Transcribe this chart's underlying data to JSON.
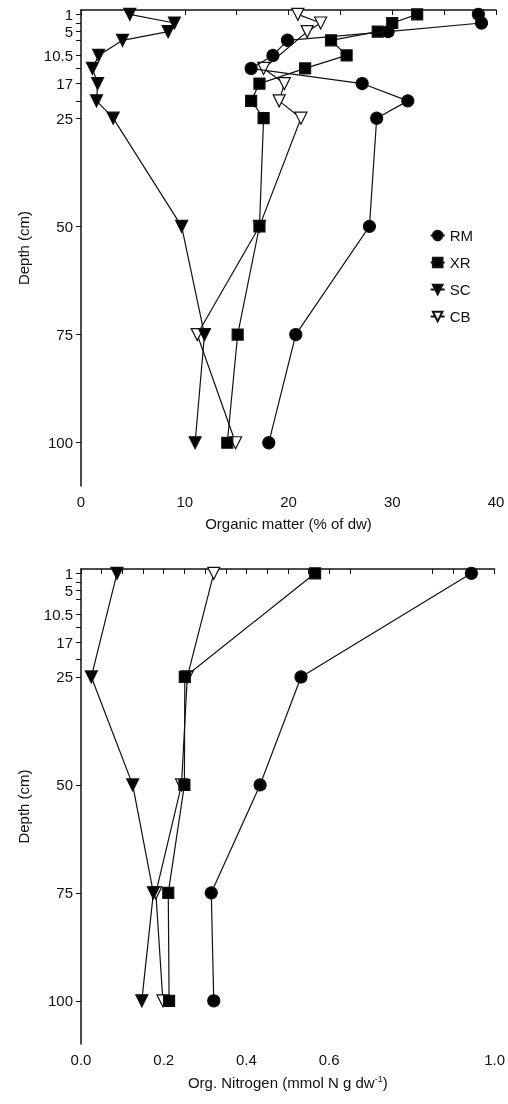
{
  "chart_data": [
    {
      "type": "line",
      "xlabel": "Organic matter (% of dw)",
      "ylabel": "Depth (cm)",
      "xlim": [
        0,
        40
      ],
      "xticks": [
        0,
        {
          "value": 5,
          "label": null
        },
        10,
        {
          "value": 15,
          "label": null
        },
        20,
        {
          "value": 25,
          "label": null
        },
        30,
        {
          "value": 35,
          "label": null
        },
        40
      ],
      "ylim": [
        110,
        0
      ],
      "yticks": [
        1,
        {
          "value": 3,
          "label": null
        },
        5,
        {
          "value": 7,
          "label": null
        },
        10.5,
        {
          "value": 13.5,
          "label": null
        },
        17,
        {
          "value": 21,
          "label": null
        },
        25,
        50,
        75,
        100
      ],
      "grid": false,
      "legend": "right",
      "series": [
        {
          "name": "RM",
          "color": "#000000",
          "marker": "circle",
          "x": [
            38.3,
            38.6,
            29.6,
            19.9,
            18.5,
            16.4,
            27.1,
            31.5,
            28.5,
            27.8,
            20.7,
            18.1
          ],
          "values": [
            1,
            3,
            5,
            7,
            10.5,
            13.5,
            17,
            21,
            25,
            50,
            75,
            100
          ]
        },
        {
          "name": "XR",
          "color": "#000000",
          "marker": "square",
          "x": [
            32.4,
            30.0,
            28.6,
            24.1,
            25.6,
            21.6,
            17.2,
            16.4,
            17.6,
            17.2,
            15.1,
            14.1
          ],
          "values": [
            1,
            3,
            5,
            7,
            10.5,
            13.5,
            17,
            21,
            25,
            50,
            75,
            100
          ]
        },
        {
          "name": "SC",
          "color": "#000000",
          "marker": "triangle",
          "x": [
            4.7,
            9.0,
            8.4,
            4.0,
            1.7,
            1.1,
            1.6,
            1.5,
            3.1,
            9.7,
            11.9,
            11.0
          ],
          "values": [
            1,
            3,
            5,
            7,
            10.5,
            13.5,
            17,
            21,
            25,
            50,
            75,
            100
          ]
        },
        {
          "name": "CB",
          "color": "#ffffff",
          "marker": "triangle",
          "x": [
            20.9,
            23.1,
            21.8,
            17.6,
            19.6,
            19.1,
            21.2,
            17.2,
            11.2,
            14.9
          ],
          "values": [
            1,
            3,
            5,
            13.5,
            17,
            21,
            25,
            50,
            75,
            100
          ]
        }
      ]
    },
    {
      "type": "line",
      "xlabel": "Org. Nitrogen (mmol N g dw$^{-1}$)",
      "ylabel": "Depth (cm)",
      "xlim": [
        0,
        1
      ],
      "xticks": [
        {
          "value": 0,
          "label": "0.0"
        },
        {
          "value": 0.05,
          "label": null
        },
        {
          "value": 0.1,
          "label": null
        },
        {
          "value": 0.15,
          "label": null
        },
        0.2,
        {
          "value": 0.25,
          "label": null
        },
        {
          "value": 0.3,
          "label": null
        },
        {
          "value": 0.35,
          "label": null
        },
        0.4,
        {
          "value": 0.45,
          "label": null
        },
        {
          "value": 0.5,
          "label": null
        },
        {
          "value": 0.55,
          "label": null
        },
        0.6,
        {
          "value": 0.65,
          "label": null
        },
        {
          "value": 0.85,
          "label": null
        },
        {
          "value": 0.9,
          "label": null
        },
        {
          "value": 0.95,
          "label": null
        },
        {
          "value": 1,
          "label": "1.0"
        }
      ],
      "ylim": [
        110,
        0
      ],
      "yticks": [
        1,
        {
          "value": 3,
          "label": null
        },
        5,
        {
          "value": 7,
          "label": null
        },
        10.5,
        {
          "value": 13.5,
          "label": null
        },
        17,
        {
          "value": 21,
          "label": null
        },
        25,
        50,
        75,
        100
      ],
      "grid": false,
      "legend": false,
      "series": [
        {
          "color": "#000000",
          "marker": "circle",
          "x": [
            0.944,
            0.532,
            0.433,
            0.315,
            0.321
          ],
          "values": [
            1,
            25,
            50,
            75,
            100
          ]
        },
        {
          "color": "#000000",
          "marker": "square",
          "x": [
            0.566,
            0.251,
            0.25,
            0.211,
            0.213
          ],
          "values": [
            1,
            25,
            50,
            75,
            100
          ]
        },
        {
          "color": "#000000",
          "marker": "triangle",
          "x": [
            0.087,
            0.025,
            0.125,
            0.175,
            0.147
          ],
          "values": [
            1,
            25,
            50,
            75,
            100
          ]
        },
        {
          "color": "#ffffff",
          "marker": "triangle",
          "x": [
            0.321,
            0.257,
            0.243,
            0.181,
            0.198
          ],
          "values": [
            1,
            25,
            50,
            75,
            100
          ]
        }
      ]
    }
  ]
}
